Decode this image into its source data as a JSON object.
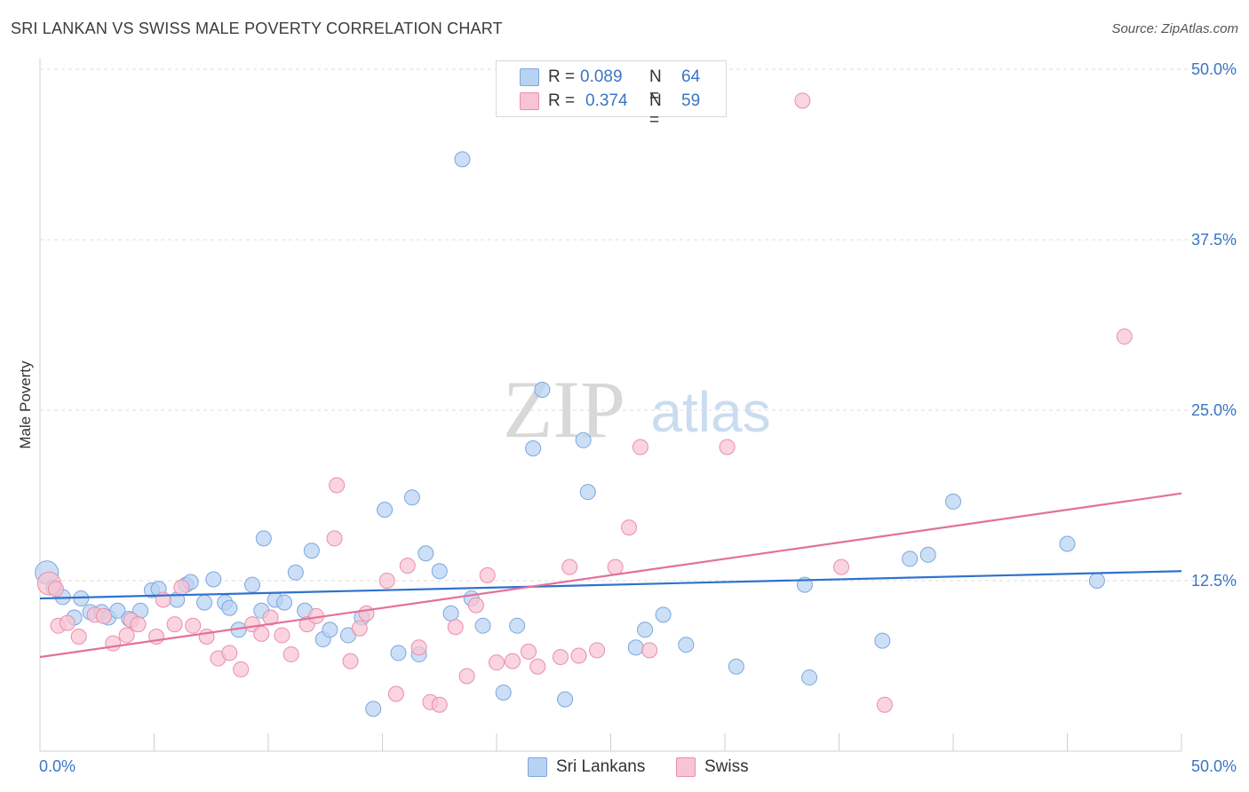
{
  "header": {
    "title": "SRI LANKAN VS SWISS MALE POVERTY CORRELATION CHART",
    "source": "Source: ZipAtlas.com"
  },
  "legend": {
    "r_label": "R = ",
    "n_label": "N = ",
    "series": [
      {
        "name": "Sri Lankans",
        "r": "0.089",
        "n": "64"
      },
      {
        "name": "Swiss",
        "r": "0.374",
        "n": "59"
      }
    ]
  },
  "watermark": {
    "part1": "ZIP",
    "part2": "atlas"
  },
  "colors": {
    "blue_fill": "#b8d3f2",
    "blue_stroke": "#7ba7de",
    "blue_line": "#2f72cc",
    "pink_fill": "#f8c3d3",
    "pink_stroke": "#e98fab",
    "pink_line": "#e4709a",
    "axis_text": "#3a75c4"
  },
  "chart_data": {
    "type": "scatter",
    "xlabel": "",
    "ylabel": "Male Poverty",
    "xlim": [
      0,
      50
    ],
    "ylim": [
      0,
      50
    ],
    "x_tick_labels": [
      "0.0%",
      "50.0%"
    ],
    "y_tick_labels": [
      "12.5%",
      "25.0%",
      "37.5%",
      "50.0%"
    ],
    "y_ticks": [
      12.5,
      25.0,
      37.5,
      50.0
    ],
    "grid": "horizontal dashed",
    "series": [
      {
        "name": "Sri Lankans",
        "color": "#b8d3f2",
        "trend": [
          [
            0,
            11.2
          ],
          [
            50,
            13.2
          ]
        ],
        "points": [
          [
            0.3,
            13.1
          ],
          [
            0.6,
            12.0
          ],
          [
            1.0,
            11.3
          ],
          [
            1.8,
            11.2
          ],
          [
            1.5,
            9.8
          ],
          [
            2.2,
            10.2
          ],
          [
            2.7,
            10.2
          ],
          [
            3.0,
            9.8
          ],
          [
            3.4,
            10.3
          ],
          [
            3.9,
            9.7
          ],
          [
            4.4,
            10.3
          ],
          [
            4.9,
            11.8
          ],
          [
            5.2,
            11.9
          ],
          [
            6.0,
            11.1
          ],
          [
            6.4,
            12.2
          ],
          [
            6.6,
            12.4
          ],
          [
            7.2,
            10.9
          ],
          [
            7.6,
            12.6
          ],
          [
            8.1,
            10.9
          ],
          [
            8.3,
            10.5
          ],
          [
            8.7,
            8.9
          ],
          [
            9.3,
            12.2
          ],
          [
            9.7,
            10.3
          ],
          [
            9.8,
            15.6
          ],
          [
            10.3,
            11.1
          ],
          [
            10.7,
            10.9
          ],
          [
            11.2,
            13.1
          ],
          [
            11.6,
            10.3
          ],
          [
            11.9,
            14.7
          ],
          [
            12.4,
            8.2
          ],
          [
            12.7,
            8.9
          ],
          [
            13.5,
            8.5
          ],
          [
            14.1,
            9.8
          ],
          [
            14.6,
            3.1
          ],
          [
            15.1,
            17.7
          ],
          [
            15.7,
            7.2
          ],
          [
            16.3,
            18.6
          ],
          [
            16.6,
            7.1
          ],
          [
            16.9,
            14.5
          ],
          [
            17.5,
            13.2
          ],
          [
            18.0,
            10.1
          ],
          [
            18.5,
            43.4
          ],
          [
            18.9,
            11.2
          ],
          [
            19.4,
            9.2
          ],
          [
            20.3,
            4.3
          ],
          [
            20.9,
            9.2
          ],
          [
            21.6,
            22.2
          ],
          [
            22.0,
            26.5
          ],
          [
            23.0,
            3.8
          ],
          [
            23.8,
            22.8
          ],
          [
            24.0,
            19.0
          ],
          [
            26.1,
            7.6
          ],
          [
            26.5,
            8.9
          ],
          [
            27.3,
            10.0
          ],
          [
            28.3,
            7.8
          ],
          [
            30.5,
            6.2
          ],
          [
            33.5,
            12.2
          ],
          [
            33.7,
            5.4
          ],
          [
            36.9,
            8.1
          ],
          [
            38.1,
            14.1
          ],
          [
            38.9,
            14.4
          ],
          [
            40.0,
            18.3
          ],
          [
            45.0,
            15.2
          ],
          [
            46.3,
            12.5
          ]
        ]
      },
      {
        "name": "Swiss",
        "color": "#f8c3d3",
        "trend": [
          [
            0,
            6.9
          ],
          [
            50,
            18.9
          ]
        ],
        "points": [
          [
            0.4,
            12.3
          ],
          [
            0.7,
            11.9
          ],
          [
            0.8,
            9.2
          ],
          [
            1.2,
            9.4
          ],
          [
            1.7,
            8.4
          ],
          [
            2.4,
            10.0
          ],
          [
            2.8,
            9.9
          ],
          [
            3.2,
            7.9
          ],
          [
            3.8,
            8.5
          ],
          [
            4.0,
            9.6
          ],
          [
            4.3,
            9.3
          ],
          [
            5.1,
            8.4
          ],
          [
            5.4,
            11.1
          ],
          [
            5.9,
            9.3
          ],
          [
            6.2,
            12.0
          ],
          [
            6.7,
            9.2
          ],
          [
            7.3,
            8.4
          ],
          [
            7.8,
            6.8
          ],
          [
            8.3,
            7.2
          ],
          [
            8.8,
            6.0
          ],
          [
            9.3,
            9.3
          ],
          [
            9.7,
            8.6
          ],
          [
            10.1,
            9.8
          ],
          [
            10.6,
            8.5
          ],
          [
            11.0,
            7.1
          ],
          [
            11.7,
            9.3
          ],
          [
            12.1,
            9.9
          ],
          [
            12.9,
            15.6
          ],
          [
            13.0,
            19.5
          ],
          [
            13.6,
            6.6
          ],
          [
            14.0,
            9.0
          ],
          [
            14.3,
            10.1
          ],
          [
            15.2,
            12.5
          ],
          [
            15.6,
            4.2
          ],
          [
            16.1,
            13.6
          ],
          [
            16.6,
            7.6
          ],
          [
            17.1,
            3.6
          ],
          [
            17.5,
            3.4
          ],
          [
            18.2,
            9.1
          ],
          [
            18.7,
            5.5
          ],
          [
            19.1,
            10.7
          ],
          [
            19.6,
            12.9
          ],
          [
            20.0,
            6.5
          ],
          [
            20.7,
            6.6
          ],
          [
            21.4,
            7.3
          ],
          [
            21.8,
            6.2
          ],
          [
            22.8,
            6.9
          ],
          [
            23.2,
            13.5
          ],
          [
            23.6,
            7.0
          ],
          [
            24.4,
            7.4
          ],
          [
            25.2,
            13.5
          ],
          [
            25.8,
            16.4
          ],
          [
            26.3,
            22.3
          ],
          [
            26.7,
            7.4
          ],
          [
            30.1,
            22.3
          ],
          [
            33.4,
            47.7
          ],
          [
            35.1,
            13.5
          ],
          [
            37.0,
            3.4
          ],
          [
            47.5,
            30.4
          ]
        ]
      }
    ]
  }
}
